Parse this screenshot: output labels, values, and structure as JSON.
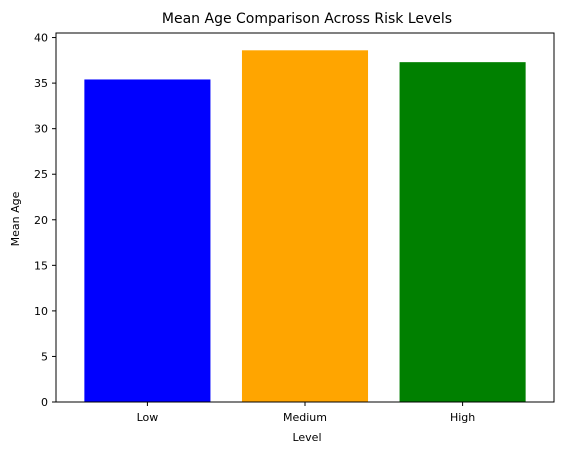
{
  "chart_data": {
    "type": "bar",
    "title": "Mean Age Comparison Across Risk Levels",
    "xlabel": "Level",
    "ylabel": "Mean Age",
    "categories": [
      "Low",
      "Medium",
      "High"
    ],
    "values": [
      35.4,
      38.6,
      37.3
    ],
    "colors": [
      "#0000ff",
      "#ffa500",
      "#008000"
    ],
    "ylim": [
      0,
      40.5
    ],
    "yticks": [
      0,
      5,
      10,
      15,
      20,
      25,
      30,
      35,
      40
    ],
    "grid": false,
    "legend": "none"
  }
}
